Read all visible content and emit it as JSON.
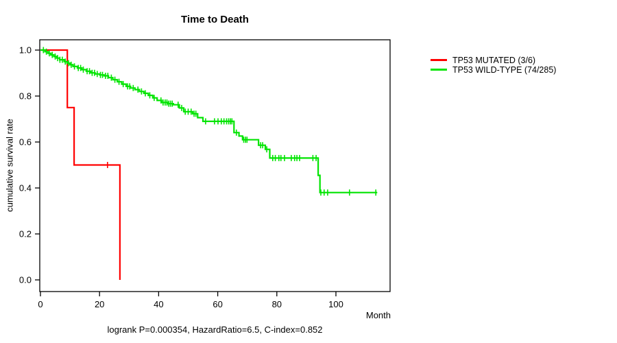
{
  "background": "#ffffff",
  "chart_data": {
    "type": "line",
    "subtype": "kaplan-meier-step",
    "title": "Time to Death",
    "xlabel": "Month",
    "ylabel": "cumulative survival rate",
    "footnote": "logrank P=0.000354, HazardRatio=6.5, C-index=0.852",
    "axis_color": "#000000",
    "x_range": [
      0,
      118
    ],
    "y_range": [
      0,
      1
    ],
    "x_ticks": [
      0,
      20,
      40,
      60,
      80,
      100
    ],
    "y_ticks": [
      0.0,
      0.2,
      0.4,
      0.6,
      0.8,
      1.0
    ],
    "grid": false,
    "legend_position": "right",
    "series": [
      {
        "name": "TP53 MUTATED (3/6)",
        "color": "#FF0000",
        "end_month": 26.9,
        "steps": [
          [
            0,
            1.0
          ],
          [
            9.1,
            0.75
          ],
          [
            11.4,
            0.5
          ],
          [
            26.9,
            0.0
          ]
        ],
        "censors": [
          22.7
        ]
      },
      {
        "name": "TP53 WILD-TYPE (74/285)",
        "color": "#00E400",
        "end_month": 114,
        "steps": [
          [
            0,
            1.0
          ],
          [
            1.5,
            0.993
          ],
          [
            2.5,
            0.986
          ],
          [
            3.5,
            0.979
          ],
          [
            4.5,
            0.972
          ],
          [
            5.5,
            0.965
          ],
          [
            6.5,
            0.958
          ],
          [
            8,
            0.95
          ],
          [
            9,
            0.943
          ],
          [
            10,
            0.936
          ],
          [
            11,
            0.929
          ],
          [
            12.5,
            0.922
          ],
          [
            14,
            0.915
          ],
          [
            15.5,
            0.908
          ],
          [
            17,
            0.901
          ],
          [
            18.5,
            0.896
          ],
          [
            20,
            0.892
          ],
          [
            21.5,
            0.888
          ],
          [
            23,
            0.88
          ],
          [
            24.5,
            0.871
          ],
          [
            26,
            0.862
          ],
          [
            27.5,
            0.852
          ],
          [
            29,
            0.842
          ],
          [
            30.5,
            0.835
          ],
          [
            32,
            0.828
          ],
          [
            33.5,
            0.82
          ],
          [
            35,
            0.812
          ],
          [
            36.5,
            0.803
          ],
          [
            38,
            0.792
          ],
          [
            39.5,
            0.781
          ],
          [
            41,
            0.772
          ],
          [
            43,
            0.767
          ],
          [
            45,
            0.762
          ],
          [
            47,
            0.748
          ],
          [
            48.5,
            0.732
          ],
          [
            51.5,
            0.723
          ],
          [
            53.2,
            0.706
          ],
          [
            55,
            0.69
          ],
          [
            65.5,
            0.641
          ],
          [
            67.2,
            0.626
          ],
          [
            68.4,
            0.61
          ],
          [
            73.8,
            0.586
          ],
          [
            76.1,
            0.568
          ],
          [
            77.6,
            0.53
          ],
          [
            94.0,
            0.455
          ],
          [
            94.6,
            0.38
          ]
        ],
        "censors": [
          1,
          2,
          3,
          4,
          5,
          5.8,
          6.6,
          7.4,
          8.4,
          9.5,
          10.4,
          11.5,
          12.8,
          13.6,
          14.5,
          15.8,
          16.6,
          17.5,
          18.3,
          19.2,
          20.3,
          21,
          22,
          22.8,
          24,
          25.2,
          26.6,
          28,
          29.5,
          30.2,
          31.4,
          33,
          34.2,
          35.5,
          37,
          38.5,
          40.8,
          41.5,
          42.2,
          42.8,
          43.4,
          44,
          44.6,
          46.6,
          47.8,
          49,
          50,
          51,
          52,
          52.6,
          55.9,
          58.9,
          60.1,
          61.2,
          62.1,
          63,
          63.7,
          64.3,
          64.8,
          66.3,
          68.8,
          69.4,
          69.9,
          74.5,
          75.2,
          76.6,
          78.6,
          79.5,
          80.7,
          81.4,
          82.6,
          84.9,
          86,
          86.8,
          87.7,
          92.2,
          93.3,
          94.9,
          96,
          97.2,
          104.6,
          113.5
        ]
      }
    ]
  }
}
